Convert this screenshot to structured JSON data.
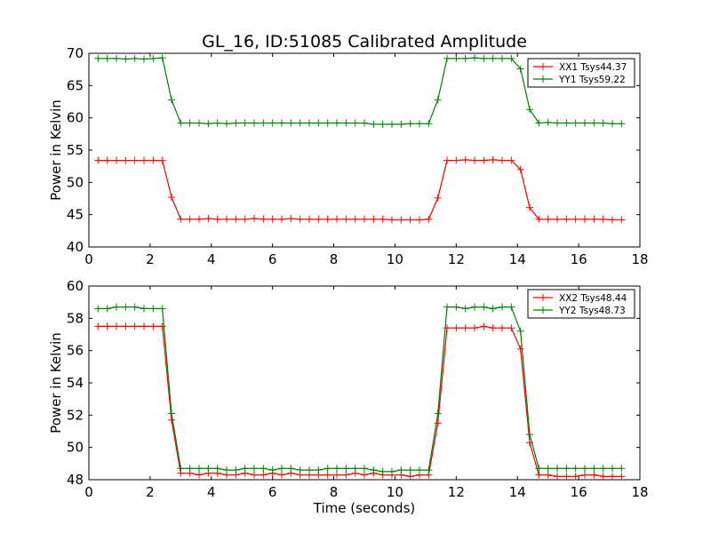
{
  "chart_data": [
    {
      "type": "line",
      "title": "GL_16, ID:51085 Calibrated Amplitude",
      "xlabel": "",
      "ylabel": "Power in Kelvin",
      "xlim": [
        0,
        18
      ],
      "ylim": [
        40,
        70
      ],
      "xticks": [
        0,
        2,
        4,
        6,
        8,
        10,
        12,
        14,
        16,
        18
      ],
      "yticks": [
        40,
        45,
        50,
        55,
        60,
        65,
        70
      ],
      "legend_position": "top-right",
      "grid": false,
      "x": [
        0.3,
        0.6,
        0.9,
        1.2,
        1.5,
        1.8,
        2.1,
        2.4,
        2.7,
        3.0,
        3.3,
        3.6,
        3.9,
        4.2,
        4.5,
        4.8,
        5.1,
        5.4,
        5.7,
        6.0,
        6.3,
        6.6,
        6.9,
        7.2,
        7.5,
        7.8,
        8.1,
        8.4,
        8.7,
        9.0,
        9.3,
        9.6,
        9.9,
        10.2,
        10.5,
        10.8,
        11.1,
        11.4,
        11.7,
        12.0,
        12.3,
        12.6,
        12.9,
        13.2,
        13.5,
        13.8,
        14.1,
        14.4,
        14.7,
        15.0,
        15.3,
        15.6,
        15.9,
        16.2,
        16.5,
        16.8,
        17.1,
        17.4
      ],
      "series": [
        {
          "name": "XX1 Tsys44.37",
          "color": "#ff0000",
          "values": [
            53.4,
            53.4,
            53.4,
            53.4,
            53.4,
            53.4,
            53.4,
            53.4,
            47.7,
            44.3,
            44.3,
            44.3,
            44.4,
            44.3,
            44.3,
            44.3,
            44.3,
            44.4,
            44.3,
            44.3,
            44.3,
            44.4,
            44.3,
            44.3,
            44.3,
            44.3,
            44.3,
            44.3,
            44.3,
            44.3,
            44.3,
            44.3,
            44.2,
            44.2,
            44.2,
            44.2,
            44.3,
            47.6,
            53.4,
            53.4,
            53.5,
            53.4,
            53.4,
            53.5,
            53.4,
            53.4,
            52.0,
            46.1,
            44.3,
            44.3,
            44.3,
            44.3,
            44.3,
            44.3,
            44.3,
            44.3,
            44.2,
            44.2
          ]
        },
        {
          "name": "YY1 Tsys59.22",
          "color": "#008000",
          "values": [
            69.2,
            69.2,
            69.2,
            69.1,
            69.2,
            69.1,
            69.2,
            69.3,
            62.8,
            59.2,
            59.2,
            59.2,
            59.1,
            59.2,
            59.1,
            59.2,
            59.2,
            59.2,
            59.2,
            59.2,
            59.2,
            59.2,
            59.2,
            59.2,
            59.2,
            59.2,
            59.2,
            59.2,
            59.2,
            59.2,
            59.0,
            59.0,
            59.0,
            59.0,
            59.1,
            59.1,
            59.1,
            62.8,
            69.2,
            69.2,
            69.2,
            69.3,
            69.2,
            69.2,
            69.2,
            69.2,
            67.6,
            61.3,
            59.2,
            59.3,
            59.2,
            59.2,
            59.2,
            59.2,
            59.2,
            59.2,
            59.1,
            59.1
          ]
        }
      ]
    },
    {
      "type": "line",
      "title": "",
      "xlabel": "Time (seconds)",
      "ylabel": "Power in Kelvin",
      "xlim": [
        0,
        18
      ],
      "ylim": [
        48,
        60
      ],
      "xticks": [
        0,
        2,
        4,
        6,
        8,
        10,
        12,
        14,
        16,
        18
      ],
      "yticks": [
        48,
        50,
        52,
        54,
        56,
        58,
        60
      ],
      "legend_position": "top-right",
      "grid": false,
      "x": [
        0.3,
        0.6,
        0.9,
        1.2,
        1.5,
        1.8,
        2.1,
        2.4,
        2.7,
        3.0,
        3.3,
        3.6,
        3.9,
        4.2,
        4.5,
        4.8,
        5.1,
        5.4,
        5.7,
        6.0,
        6.3,
        6.6,
        6.9,
        7.2,
        7.5,
        7.8,
        8.1,
        8.4,
        8.7,
        9.0,
        9.3,
        9.6,
        9.9,
        10.2,
        10.5,
        10.8,
        11.1,
        11.4,
        11.7,
        12.0,
        12.3,
        12.6,
        12.9,
        13.2,
        13.5,
        13.8,
        14.1,
        14.4,
        14.7,
        15.0,
        15.3,
        15.6,
        15.9,
        16.2,
        16.5,
        16.8,
        17.1,
        17.4
      ],
      "series": [
        {
          "name": "XX2 Tsys48.44",
          "color": "#ff0000",
          "values": [
            57.5,
            57.5,
            57.5,
            57.5,
            57.5,
            57.5,
            57.5,
            57.5,
            51.7,
            48.4,
            48.4,
            48.3,
            48.4,
            48.4,
            48.3,
            48.3,
            48.4,
            48.3,
            48.3,
            48.4,
            48.3,
            48.4,
            48.3,
            48.3,
            48.3,
            48.3,
            48.3,
            48.3,
            48.4,
            48.3,
            48.4,
            48.3,
            48.3,
            48.3,
            48.2,
            48.3,
            48.3,
            51.5,
            57.4,
            57.4,
            57.4,
            57.4,
            57.5,
            57.4,
            57.4,
            57.4,
            56.1,
            50.3,
            48.3,
            48.3,
            48.2,
            48.2,
            48.2,
            48.3,
            48.3,
            48.2,
            48.2,
            48.2
          ]
        },
        {
          "name": "YY2 Tsys48.73",
          "color": "#008000",
          "values": [
            58.6,
            58.6,
            58.7,
            58.7,
            58.7,
            58.6,
            58.6,
            58.6,
            52.1,
            48.7,
            48.7,
            48.7,
            48.7,
            48.7,
            48.6,
            48.6,
            48.7,
            48.7,
            48.7,
            48.6,
            48.7,
            48.7,
            48.6,
            48.6,
            48.6,
            48.7,
            48.7,
            48.7,
            48.7,
            48.7,
            48.6,
            48.5,
            48.5,
            48.6,
            48.6,
            48.6,
            48.6,
            52.1,
            58.7,
            58.7,
            58.6,
            58.7,
            58.7,
            58.6,
            58.7,
            58.7,
            57.2,
            50.8,
            48.7,
            48.7,
            48.7,
            48.7,
            48.7,
            48.7,
            48.7,
            48.7,
            48.7,
            48.7
          ]
        }
      ]
    }
  ]
}
